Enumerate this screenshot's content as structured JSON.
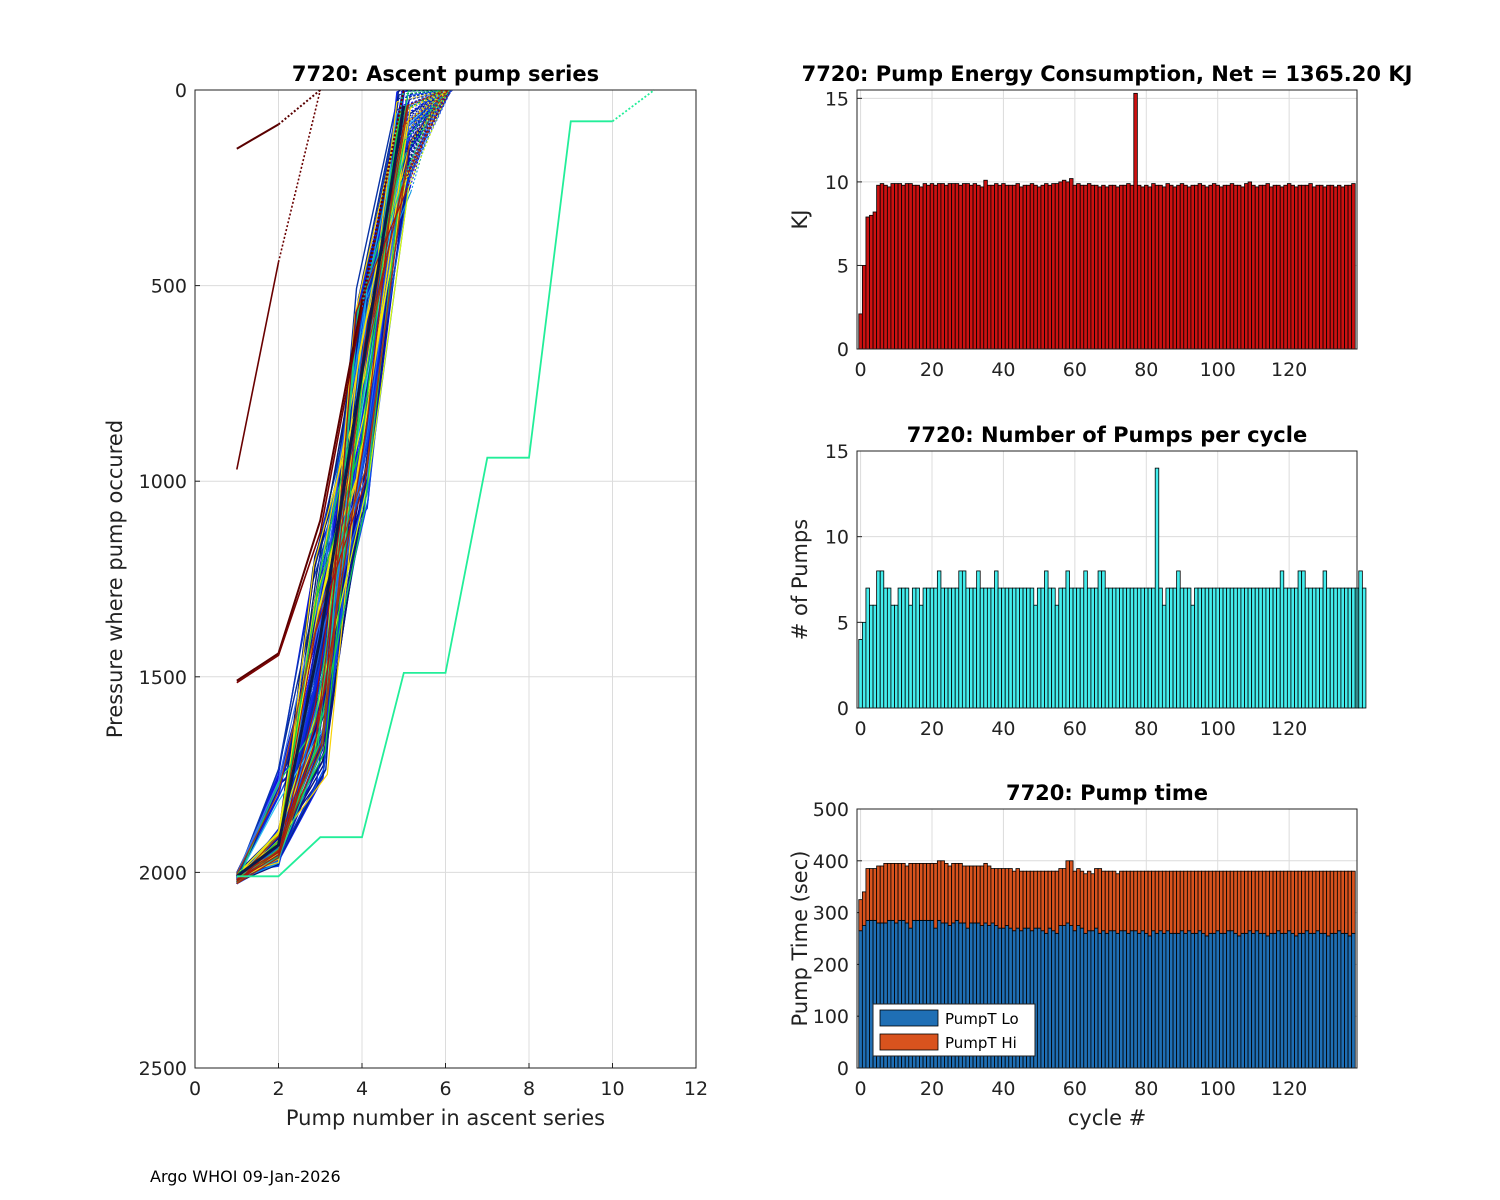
{
  "footer": "Argo WHOI 09-Jan-2026",
  "colors": {
    "energy": "#cc1111",
    "pumps": "#44eeee",
    "lo": "#1f6fb5",
    "hi": "#d9531e",
    "lastSeries": "#22ee99"
  },
  "chart_data": [
    {
      "id": "ascent",
      "type": "line",
      "title": "7720: Ascent pump series",
      "xlabel": "Pump number in ascent series",
      "ylabel": "Pressure where pump occured",
      "xlim": [
        0,
        12
      ],
      "ylim": [
        0,
        2500
      ],
      "yreversed": true,
      "xticks": [
        0,
        2,
        4,
        6,
        8,
        10,
        12
      ],
      "yticks": [
        0,
        500,
        1000,
        1500,
        2000,
        2500
      ],
      "grid": true,
      "series": [
        {
          "name": "dark red early A",
          "x": [
            1,
            2,
            3
          ],
          "y": [
            150,
            88,
            0
          ]
        },
        {
          "name": "dark red early B",
          "x": [
            1,
            2,
            3
          ],
          "y": [
            970,
            440,
            0
          ]
        },
        {
          "name": "dark red C",
          "x": [
            1,
            2,
            3,
            4,
            5
          ],
          "y": [
            1510,
            1440,
            1100,
            540,
            0
          ]
        },
        {
          "name": "dark red D",
          "x": [
            1,
            2,
            3,
            4,
            5
          ],
          "y": [
            1515,
            1445,
            1130,
            560,
            0
          ]
        },
        {
          "name": "typical",
          "x": [
            1,
            2,
            3,
            4,
            5,
            6
          ],
          "y": [
            2010,
            1930,
            1400,
            720,
            40,
            0
          ]
        },
        {
          "name": "last",
          "x": [
            1,
            2,
            3,
            4,
            5,
            6,
            7,
            8,
            9,
            10,
            11
          ],
          "y": [
            2010,
            2010,
            1910,
            1910,
            1490,
            1490,
            940,
            940,
            80,
            80,
            0
          ]
        }
      ]
    },
    {
      "id": "energy",
      "type": "bar",
      "title": "7720: Pump Energy Consumption,  Net = 1365.20 KJ",
      "ylabel": "KJ",
      "xlim": [
        -1,
        139
      ],
      "ylim": [
        0,
        15.5
      ],
      "xticks": [
        0,
        20,
        40,
        60,
        80,
        100,
        120
      ],
      "yticks": [
        0,
        5,
        10,
        15
      ],
      "grid": true,
      "x_start": 0,
      "values": [
        2.1,
        5.0,
        7.9,
        8.0,
        8.2,
        9.8,
        9.9,
        9.8,
        9.7,
        9.9,
        9.9,
        9.9,
        9.8,
        9.9,
        9.9,
        9.8,
        9.8,
        9.7,
        9.9,
        9.8,
        9.9,
        9.8,
        9.9,
        9.9,
        9.8,
        9.9,
        9.9,
        9.9,
        9.8,
        9.9,
        9.9,
        9.8,
        9.9,
        9.8,
        9.7,
        10.1,
        9.8,
        9.8,
        9.9,
        9.8,
        9.9,
        9.8,
        9.8,
        9.8,
        9.9,
        9.7,
        9.8,
        9.8,
        9.9,
        9.8,
        9.7,
        9.8,
        9.9,
        9.8,
        9.9,
        9.9,
        10.0,
        10.1,
        10.0,
        10.2,
        9.8,
        9.9,
        9.8,
        9.8,
        9.9,
        9.8,
        9.8,
        9.7,
        9.8,
        9.7,
        9.8,
        9.8,
        9.7,
        9.8,
        9.8,
        9.9,
        9.8,
        15.3,
        9.8,
        9.7,
        9.8,
        9.7,
        9.9,
        9.8,
        9.8,
        9.7,
        9.9,
        9.8,
        9.7,
        9.8,
        9.9,
        9.8,
        9.7,
        9.8,
        9.8,
        9.9,
        9.8,
        9.7,
        9.8,
        9.9,
        9.8,
        9.7,
        9.8,
        9.8,
        9.9,
        9.8,
        9.8,
        9.7,
        9.9,
        10.0,
        9.8,
        9.7,
        9.8,
        9.8,
        9.9,
        9.7,
        9.8,
        9.8,
        9.7,
        9.8,
        9.9,
        9.8,
        9.7,
        9.8,
        9.8,
        9.8,
        9.9,
        9.7,
        9.8,
        9.8,
        9.7,
        9.8,
        9.8,
        9.7,
        9.8,
        9.7,
        9.8,
        9.8,
        9.9
      ]
    },
    {
      "id": "pumps",
      "type": "bar",
      "title": "7720: Number of Pumps per cycle",
      "ylabel": "# of Pumps",
      "xlim": [
        -1,
        139
      ],
      "ylim": [
        0,
        15
      ],
      "xticks": [
        0,
        20,
        40,
        60,
        80,
        100,
        120
      ],
      "yticks": [
        0,
        5,
        10,
        15
      ],
      "grid": true,
      "x_start": 0,
      "values": [
        4,
        5,
        7,
        6,
        6,
        8,
        8,
        7,
        7,
        6,
        6,
        7,
        7,
        7,
        6,
        7,
        7,
        6,
        7,
        7,
        7,
        7,
        8,
        7,
        7,
        7,
        7,
        7,
        8,
        8,
        7,
        7,
        7,
        8,
        7,
        7,
        7,
        7,
        8,
        7,
        7,
        7,
        7,
        7,
        7,
        7,
        7,
        7,
        7,
        6,
        7,
        7,
        8,
        7,
        7,
        6,
        7,
        7,
        8,
        7,
        7,
        7,
        7,
        8,
        7,
        7,
        7,
        8,
        8,
        7,
        7,
        7,
        7,
        7,
        7,
        7,
        7,
        7,
        7,
        7,
        7,
        7,
        7,
        14,
        7,
        6,
        7,
        7,
        7,
        8,
        7,
        7,
        7,
        6,
        7,
        7,
        7,
        7,
        7,
        7,
        7,
        7,
        7,
        7,
        7,
        7,
        7,
        7,
        7,
        7,
        7,
        7,
        7,
        7,
        7,
        7,
        7,
        7,
        8,
        7,
        7,
        7,
        7,
        8,
        8,
        7,
        7,
        7,
        7,
        7,
        8,
        7,
        7,
        7,
        7,
        7,
        7,
        7,
        7,
        7,
        8,
        7
      ]
    },
    {
      "id": "pumptime",
      "type": "bar",
      "stacked": true,
      "title": "7720: Pump time",
      "xlabel": "cycle #",
      "ylabel": "Pump Time (sec)",
      "xlim": [
        -1,
        139
      ],
      "ylim": [
        0,
        500
      ],
      "xticks": [
        0,
        20,
        40,
        60,
        80,
        100,
        120
      ],
      "yticks": [
        0,
        100,
        200,
        300,
        400,
        500
      ],
      "grid": true,
      "legend": "bottom-left",
      "x_start": 0,
      "series": [
        {
          "name": "PumpT Lo",
          "values": [
            265,
            275,
            285,
            285,
            285,
            280,
            280,
            280,
            285,
            285,
            280,
            285,
            285,
            280,
            270,
            285,
            285,
            285,
            285,
            285,
            285,
            270,
            285,
            280,
            280,
            275,
            280,
            285,
            280,
            280,
            270,
            280,
            280,
            280,
            275,
            280,
            275,
            280,
            275,
            270,
            270,
            275,
            270,
            265,
            270,
            265,
            270,
            270,
            265,
            270,
            270,
            265,
            260,
            270,
            265,
            260,
            275,
            275,
            280,
            275,
            265,
            275,
            270,
            260,
            265,
            265,
            270,
            260,
            265,
            260,
            265,
            265,
            260,
            265,
            265,
            260,
            265,
            265,
            260,
            265,
            260,
            255,
            265,
            260,
            265,
            260,
            265,
            260,
            260,
            260,
            265,
            260,
            265,
            260,
            260,
            265,
            260,
            255,
            260,
            260,
            265,
            260,
            260,
            265,
            265,
            260,
            255,
            260,
            260,
            265,
            260,
            265,
            260,
            260,
            255,
            260,
            260,
            265,
            260,
            260,
            265,
            260,
            255,
            260,
            260,
            265,
            260,
            260,
            265,
            260,
            260,
            255,
            260,
            260,
            265,
            260,
            260,
            255,
            260
          ]
        },
        {
          "name": "PumpT Hi",
          "values": [
            60,
            65,
            100,
            100,
            100,
            110,
            110,
            115,
            110,
            110,
            115,
            110,
            110,
            110,
            125,
            110,
            110,
            110,
            110,
            110,
            110,
            125,
            115,
            120,
            115,
            115,
            115,
            110,
            115,
            110,
            120,
            110,
            110,
            110,
            115,
            115,
            115,
            105,
            110,
            115,
            115,
            110,
            115,
            115,
            115,
            115,
            110,
            110,
            115,
            110,
            110,
            115,
            120,
            110,
            115,
            120,
            110,
            110,
            120,
            125,
            115,
            110,
            110,
            115,
            115,
            110,
            115,
            125,
            115,
            120,
            115,
            115,
            115,
            115,
            115,
            120,
            115,
            115,
            120,
            115,
            120,
            125,
            115,
            120,
            115,
            120,
            115,
            120,
            120,
            120,
            115,
            120,
            115,
            120,
            120,
            115,
            120,
            125,
            120,
            120,
            115,
            120,
            120,
            115,
            115,
            120,
            125,
            120,
            120,
            115,
            120,
            115,
            120,
            120,
            125,
            120,
            120,
            115,
            120,
            120,
            115,
            120,
            125,
            120,
            120,
            115,
            120,
            120,
            115,
            120,
            120,
            125,
            120,
            120,
            115,
            120,
            120,
            125,
            120
          ]
        }
      ]
    }
  ]
}
